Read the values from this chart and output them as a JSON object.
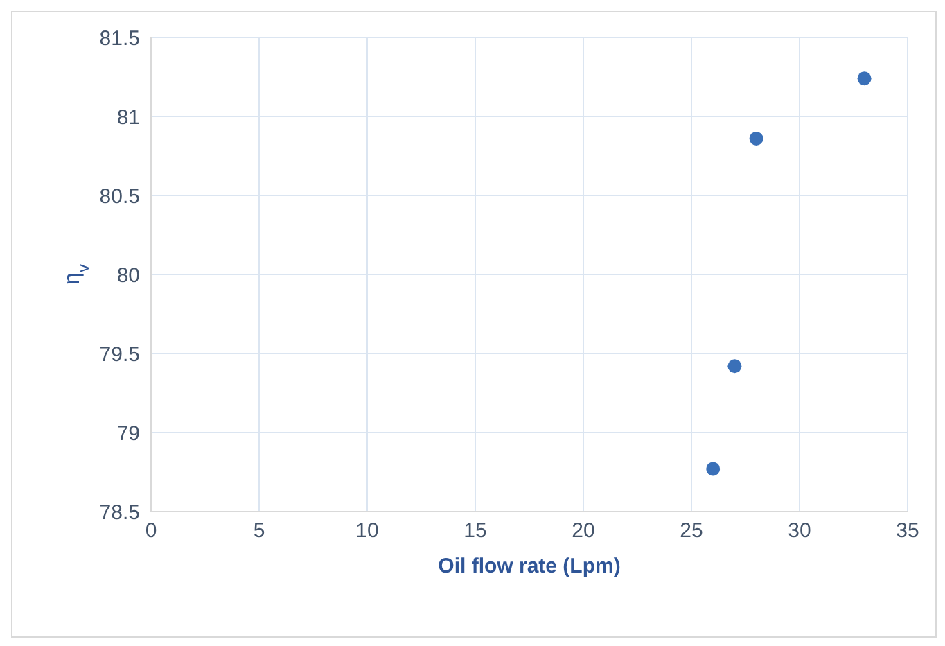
{
  "chart_data": {
    "type": "scatter",
    "xlabel": "Oil flow rate (Lpm)",
    "ylabel": "η$_{v}$",
    "x": [
      26,
      27,
      28,
      33
    ],
    "values": [
      78.77,
      79.42,
      80.86,
      81.24
    ],
    "color": "#3a70b8",
    "marker": "circle",
    "xlim": [
      0,
      35
    ],
    "xticks": [
      0,
      5,
      10,
      15,
      20,
      25,
      30,
      35
    ],
    "ylim": [
      78.5,
      81.5
    ],
    "yticks": [
      78.5,
      79,
      79.5,
      80,
      80.5,
      81,
      81.5
    ],
    "grid": true
  }
}
